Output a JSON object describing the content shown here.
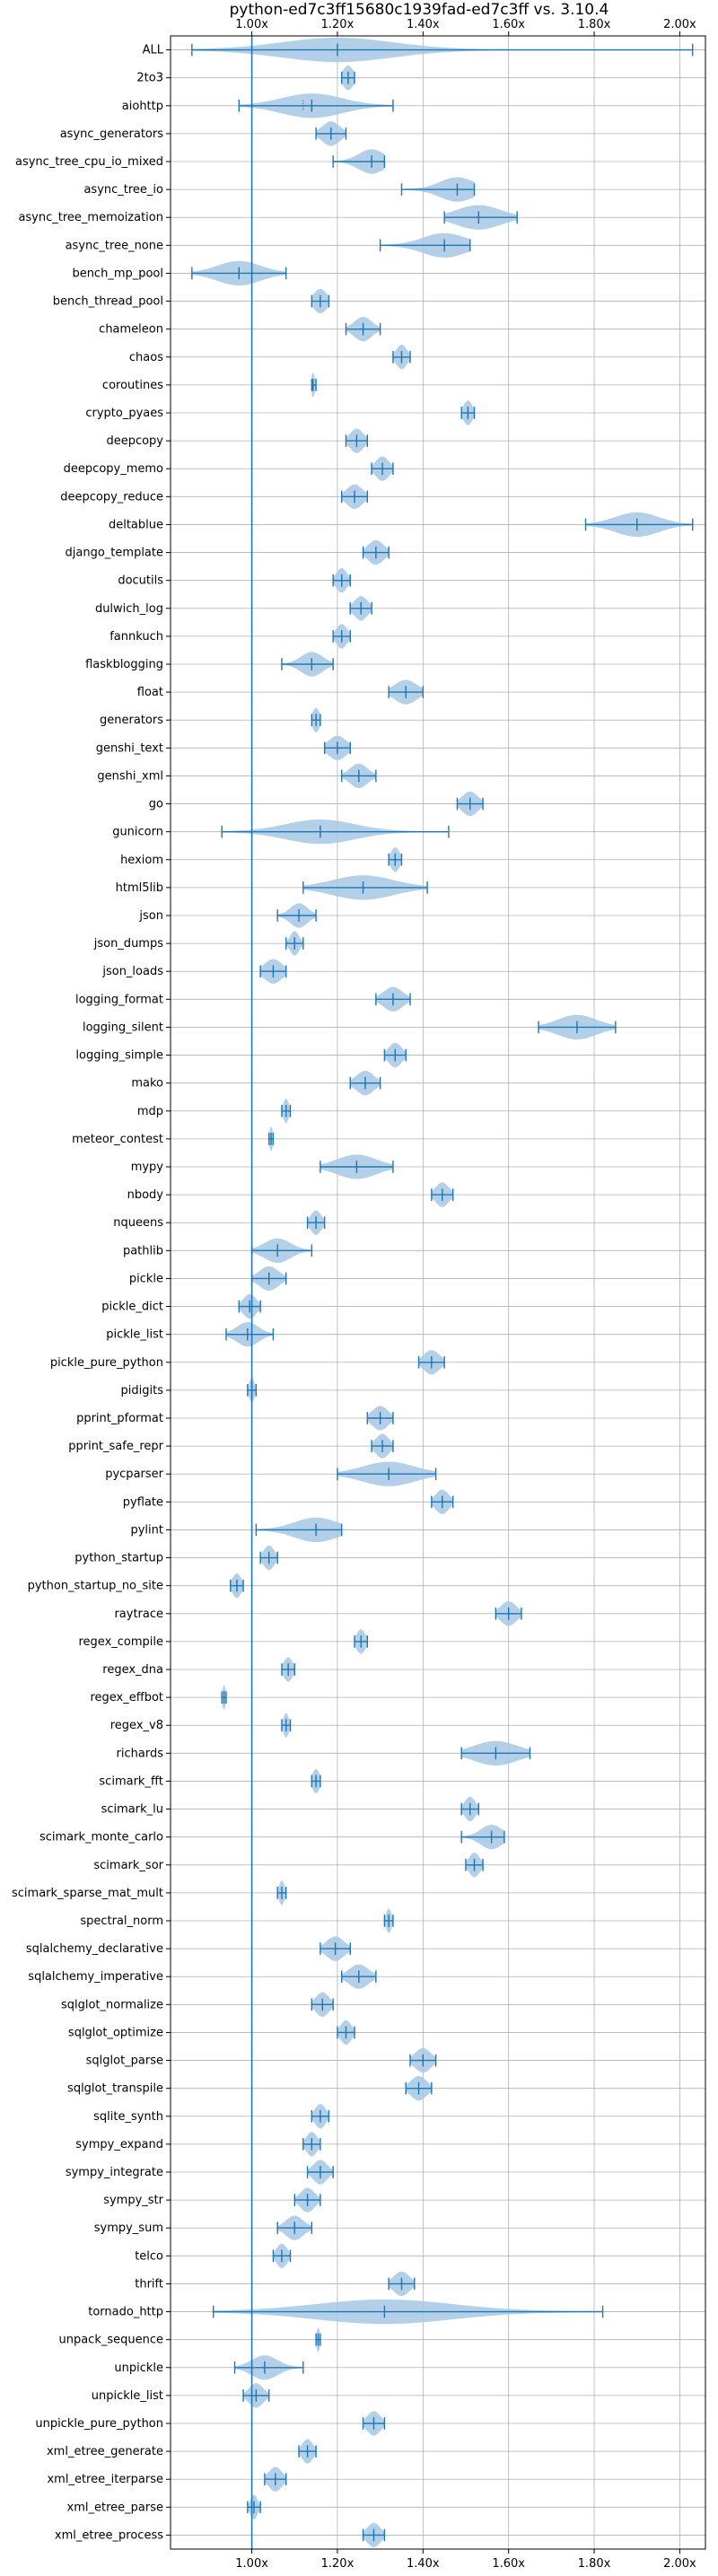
{
  "chart_data": {
    "type": "violin",
    "title": "python-ed7c3ff15680c1939fad-ed7c3ff vs. 3.10.4",
    "xlabel": "",
    "ylabel": "",
    "xlim": [
      0.81,
      2.06
    ],
    "x_ticks": [
      1.0,
      1.2,
      1.4,
      1.6,
      1.8,
      2.0
    ],
    "x_tick_labels": [
      "1.00x",
      "1.20x",
      "1.40x",
      "1.60x",
      "1.80x",
      "2.00x"
    ],
    "x_ticks_top": true,
    "x_ticks_bottom": true,
    "grid": true,
    "reference_line": 1.0,
    "colors": {
      "violin_fill": "#a6c8e4",
      "stroke": "#1f77b4",
      "grid": "#b0b0b0"
    },
    "benchmarks": [
      {
        "name": "ALL",
        "min": 0.86,
        "max": 2.03,
        "mean": 1.2,
        "median": 1.2,
        "spread": 0.13
      },
      {
        "name": "2to3",
        "min": 1.21,
        "max": 1.24,
        "mean": 1.225,
        "median": 1.225,
        "spread": 0.012
      },
      {
        "name": "aiohttp",
        "min": 0.97,
        "max": 1.33,
        "mean": 1.14,
        "median": 1.12,
        "spread": 0.07
      },
      {
        "name": "async_generators",
        "min": 1.15,
        "max": 1.22,
        "mean": 1.185,
        "median": 1.185,
        "spread": 0.02
      },
      {
        "name": "async_tree_cpu_io_mixed",
        "min": 1.19,
        "max": 1.31,
        "mean": 1.28,
        "median": 1.28,
        "spread": 0.03
      },
      {
        "name": "async_tree_io",
        "min": 1.35,
        "max": 1.52,
        "mean": 1.48,
        "median": 1.48,
        "spread": 0.04
      },
      {
        "name": "async_tree_memoization",
        "min": 1.45,
        "max": 1.62,
        "mean": 1.53,
        "median": 1.53,
        "spread": 0.05
      },
      {
        "name": "async_tree_none",
        "min": 1.3,
        "max": 1.51,
        "mean": 1.45,
        "median": 1.45,
        "spread": 0.05
      },
      {
        "name": "bench_mp_pool",
        "min": 0.86,
        "max": 1.08,
        "mean": 0.97,
        "median": 0.97,
        "spread": 0.05
      },
      {
        "name": "bench_thread_pool",
        "min": 1.14,
        "max": 1.18,
        "mean": 1.16,
        "median": 1.16,
        "spread": 0.015
      },
      {
        "name": "chameleon",
        "min": 1.22,
        "max": 1.3,
        "mean": 1.26,
        "median": 1.26,
        "spread": 0.02
      },
      {
        "name": "chaos",
        "min": 1.33,
        "max": 1.37,
        "mean": 1.35,
        "median": 1.35,
        "spread": 0.012
      },
      {
        "name": "coroutines",
        "min": 1.14,
        "max": 1.15,
        "mean": 1.143,
        "median": 1.143,
        "spread": 0.004
      },
      {
        "name": "crypto_pyaes",
        "min": 1.49,
        "max": 1.52,
        "mean": 1.505,
        "median": 1.505,
        "spread": 0.01
      },
      {
        "name": "deepcopy",
        "min": 1.22,
        "max": 1.27,
        "mean": 1.245,
        "median": 1.245,
        "spread": 0.015
      },
      {
        "name": "deepcopy_memo",
        "min": 1.28,
        "max": 1.33,
        "mean": 1.305,
        "median": 1.305,
        "spread": 0.015
      },
      {
        "name": "deepcopy_reduce",
        "min": 1.21,
        "max": 1.27,
        "mean": 1.24,
        "median": 1.24,
        "spread": 0.018
      },
      {
        "name": "deltablue",
        "min": 1.78,
        "max": 2.03,
        "mean": 1.9,
        "median": 1.9,
        "spread": 0.05
      },
      {
        "name": "django_template",
        "min": 1.26,
        "max": 1.32,
        "mean": 1.29,
        "median": 1.29,
        "spread": 0.018
      },
      {
        "name": "docutils",
        "min": 1.19,
        "max": 1.23,
        "mean": 1.21,
        "median": 1.21,
        "spread": 0.012
      },
      {
        "name": "dulwich_log",
        "min": 1.23,
        "max": 1.28,
        "mean": 1.255,
        "median": 1.255,
        "spread": 0.015
      },
      {
        "name": "fannkuch",
        "min": 1.19,
        "max": 1.23,
        "mean": 1.21,
        "median": 1.21,
        "spread": 0.012
      },
      {
        "name": "flaskblogging",
        "min": 1.07,
        "max": 1.19,
        "mean": 1.14,
        "median": 1.14,
        "spread": 0.025
      },
      {
        "name": "float",
        "min": 1.32,
        "max": 1.4,
        "mean": 1.36,
        "median": 1.36,
        "spread": 0.025
      },
      {
        "name": "generators",
        "min": 1.14,
        "max": 1.16,
        "mean": 1.15,
        "median": 1.15,
        "spread": 0.008
      },
      {
        "name": "genshi_text",
        "min": 1.17,
        "max": 1.23,
        "mean": 1.2,
        "median": 1.2,
        "spread": 0.02
      },
      {
        "name": "genshi_xml",
        "min": 1.21,
        "max": 1.29,
        "mean": 1.25,
        "median": 1.25,
        "spread": 0.02
      },
      {
        "name": "go",
        "min": 1.48,
        "max": 1.54,
        "mean": 1.51,
        "median": 1.51,
        "spread": 0.018
      },
      {
        "name": "gunicorn",
        "min": 0.93,
        "max": 1.46,
        "mean": 1.16,
        "median": 1.16,
        "spread": 0.08
      },
      {
        "name": "hexiom",
        "min": 1.32,
        "max": 1.35,
        "mean": 1.335,
        "median": 1.335,
        "spread": 0.01
      },
      {
        "name": "html5lib",
        "min": 1.12,
        "max": 1.41,
        "mean": 1.26,
        "median": 1.26,
        "spread": 0.07
      },
      {
        "name": "json",
        "min": 1.06,
        "max": 1.15,
        "mean": 1.11,
        "median": 1.11,
        "spread": 0.02
      },
      {
        "name": "json_dumps",
        "min": 1.08,
        "max": 1.12,
        "mean": 1.1,
        "median": 1.1,
        "spread": 0.01
      },
      {
        "name": "json_loads",
        "min": 1.02,
        "max": 1.08,
        "mean": 1.05,
        "median": 1.05,
        "spread": 0.02
      },
      {
        "name": "logging_format",
        "min": 1.29,
        "max": 1.37,
        "mean": 1.33,
        "median": 1.33,
        "spread": 0.022
      },
      {
        "name": "logging_silent",
        "min": 1.67,
        "max": 1.85,
        "mean": 1.76,
        "median": 1.76,
        "spread": 0.045
      },
      {
        "name": "logging_simple",
        "min": 1.31,
        "max": 1.36,
        "mean": 1.335,
        "median": 1.335,
        "spread": 0.015
      },
      {
        "name": "mako",
        "min": 1.23,
        "max": 1.3,
        "mean": 1.265,
        "median": 1.265,
        "spread": 0.02
      },
      {
        "name": "mdp",
        "min": 1.07,
        "max": 1.09,
        "mean": 1.08,
        "median": 1.08,
        "spread": 0.006
      },
      {
        "name": "meteor_contest",
        "min": 1.04,
        "max": 1.05,
        "mean": 1.045,
        "median": 1.045,
        "spread": 0.004
      },
      {
        "name": "mypy",
        "min": 1.16,
        "max": 1.33,
        "mean": 1.245,
        "median": 1.245,
        "spread": 0.045
      },
      {
        "name": "nbody",
        "min": 1.42,
        "max": 1.47,
        "mean": 1.445,
        "median": 1.445,
        "spread": 0.015
      },
      {
        "name": "nqueens",
        "min": 1.13,
        "max": 1.17,
        "mean": 1.15,
        "median": 1.15,
        "spread": 0.012
      },
      {
        "name": "pathlib",
        "min": 1.0,
        "max": 1.14,
        "mean": 1.06,
        "median": 1.06,
        "spread": 0.03
      },
      {
        "name": "pickle",
        "min": 1.0,
        "max": 1.08,
        "mean": 1.04,
        "median": 1.04,
        "spread": 0.022
      },
      {
        "name": "pickle_dict",
        "min": 0.97,
        "max": 1.02,
        "mean": 0.995,
        "median": 0.995,
        "spread": 0.015
      },
      {
        "name": "pickle_list",
        "min": 0.94,
        "max": 1.05,
        "mean": 0.99,
        "median": 0.99,
        "spread": 0.025
      },
      {
        "name": "pickle_pure_python",
        "min": 1.39,
        "max": 1.45,
        "mean": 1.42,
        "median": 1.42,
        "spread": 0.018
      },
      {
        "name": "pidigits",
        "min": 0.99,
        "max": 1.01,
        "mean": 1.0,
        "median": 1.0,
        "spread": 0.006
      },
      {
        "name": "pprint_pformat",
        "min": 1.27,
        "max": 1.33,
        "mean": 1.3,
        "median": 1.3,
        "spread": 0.018
      },
      {
        "name": "pprint_safe_repr",
        "min": 1.28,
        "max": 1.33,
        "mean": 1.305,
        "median": 1.305,
        "spread": 0.015
      },
      {
        "name": "pycparser",
        "min": 1.2,
        "max": 1.43,
        "mean": 1.32,
        "median": 1.32,
        "spread": 0.06
      },
      {
        "name": "pyflate",
        "min": 1.42,
        "max": 1.47,
        "mean": 1.445,
        "median": 1.445,
        "spread": 0.015
      },
      {
        "name": "pylint",
        "min": 1.01,
        "max": 1.21,
        "mean": 1.15,
        "median": 1.15,
        "spread": 0.05
      },
      {
        "name": "python_startup",
        "min": 1.02,
        "max": 1.06,
        "mean": 1.04,
        "median": 1.04,
        "spread": 0.012
      },
      {
        "name": "python_startup_no_site",
        "min": 0.95,
        "max": 0.98,
        "mean": 0.965,
        "median": 0.965,
        "spread": 0.01
      },
      {
        "name": "raytrace",
        "min": 1.57,
        "max": 1.63,
        "mean": 1.6,
        "median": 1.6,
        "spread": 0.018
      },
      {
        "name": "regex_compile",
        "min": 1.24,
        "max": 1.27,
        "mean": 1.255,
        "median": 1.255,
        "spread": 0.01
      },
      {
        "name": "regex_dna",
        "min": 1.07,
        "max": 1.1,
        "mean": 1.085,
        "median": 1.085,
        "spread": 0.01
      },
      {
        "name": "regex_effbot",
        "min": 0.93,
        "max": 0.94,
        "mean": 0.935,
        "median": 0.935,
        "spread": 0.004
      },
      {
        "name": "regex_v8",
        "min": 1.07,
        "max": 1.09,
        "mean": 1.08,
        "median": 1.08,
        "spread": 0.006
      },
      {
        "name": "richards",
        "min": 1.49,
        "max": 1.65,
        "mean": 1.57,
        "median": 1.57,
        "spread": 0.05
      },
      {
        "name": "scimark_fft",
        "min": 1.14,
        "max": 1.16,
        "mean": 1.15,
        "median": 1.15,
        "spread": 0.008
      },
      {
        "name": "scimark_lu",
        "min": 1.49,
        "max": 1.53,
        "mean": 1.51,
        "median": 1.51,
        "spread": 0.012
      },
      {
        "name": "scimark_monte_carlo",
        "min": 1.49,
        "max": 1.59,
        "mean": 1.56,
        "median": 1.56,
        "spread": 0.025
      },
      {
        "name": "scimark_sor",
        "min": 1.5,
        "max": 1.54,
        "mean": 1.52,
        "median": 1.52,
        "spread": 0.012
      },
      {
        "name": "scimark_sparse_mat_mult",
        "min": 1.06,
        "max": 1.08,
        "mean": 1.07,
        "median": 1.07,
        "spread": 0.006
      },
      {
        "name": "spectral_norm",
        "min": 1.31,
        "max": 1.33,
        "mean": 1.32,
        "median": 1.32,
        "spread": 0.006
      },
      {
        "name": "sqlalchemy_declarative",
        "min": 1.16,
        "max": 1.23,
        "mean": 1.195,
        "median": 1.195,
        "spread": 0.02
      },
      {
        "name": "sqlalchemy_imperative",
        "min": 1.21,
        "max": 1.29,
        "mean": 1.25,
        "median": 1.25,
        "spread": 0.022
      },
      {
        "name": "sqlglot_normalize",
        "min": 1.14,
        "max": 1.19,
        "mean": 1.165,
        "median": 1.165,
        "spread": 0.015
      },
      {
        "name": "sqlglot_optimize",
        "min": 1.2,
        "max": 1.24,
        "mean": 1.22,
        "median": 1.22,
        "spread": 0.012
      },
      {
        "name": "sqlglot_parse",
        "min": 1.37,
        "max": 1.43,
        "mean": 1.4,
        "median": 1.4,
        "spread": 0.018
      },
      {
        "name": "sqlglot_transpile",
        "min": 1.36,
        "max": 1.42,
        "mean": 1.39,
        "median": 1.39,
        "spread": 0.018
      },
      {
        "name": "sqlite_synth",
        "min": 1.14,
        "max": 1.18,
        "mean": 1.16,
        "median": 1.16,
        "spread": 0.012
      },
      {
        "name": "sympy_expand",
        "min": 1.12,
        "max": 1.16,
        "mean": 1.14,
        "median": 1.14,
        "spread": 0.012
      },
      {
        "name": "sympy_integrate",
        "min": 1.13,
        "max": 1.19,
        "mean": 1.16,
        "median": 1.16,
        "spread": 0.016
      },
      {
        "name": "sympy_str",
        "min": 1.1,
        "max": 1.16,
        "mean": 1.13,
        "median": 1.13,
        "spread": 0.016
      },
      {
        "name": "sympy_sum",
        "min": 1.06,
        "max": 1.14,
        "mean": 1.1,
        "median": 1.1,
        "spread": 0.02
      },
      {
        "name": "telco",
        "min": 1.05,
        "max": 1.09,
        "mean": 1.07,
        "median": 1.07,
        "spread": 0.012
      },
      {
        "name": "thrift",
        "min": 1.32,
        "max": 1.38,
        "mean": 1.35,
        "median": 1.35,
        "spread": 0.018
      },
      {
        "name": "tornado_http",
        "min": 0.91,
        "max": 1.82,
        "mean": 1.31,
        "median": 1.31,
        "spread": 0.16
      },
      {
        "name": "unpack_sequence",
        "min": 1.15,
        "max": 1.16,
        "mean": 1.155,
        "median": 1.155,
        "spread": 0.004
      },
      {
        "name": "unpickle",
        "min": 0.96,
        "max": 1.12,
        "mean": 1.03,
        "median": 1.03,
        "spread": 0.03
      },
      {
        "name": "unpickle_list",
        "min": 0.98,
        "max": 1.04,
        "mean": 1.01,
        "median": 1.01,
        "spread": 0.016
      },
      {
        "name": "unpickle_pure_python",
        "min": 1.26,
        "max": 1.31,
        "mean": 1.285,
        "median": 1.285,
        "spread": 0.015
      },
      {
        "name": "xml_etree_generate",
        "min": 1.11,
        "max": 1.15,
        "mean": 1.13,
        "median": 1.13,
        "spread": 0.012
      },
      {
        "name": "xml_etree_iterparse",
        "min": 1.03,
        "max": 1.08,
        "mean": 1.055,
        "median": 1.055,
        "spread": 0.015
      },
      {
        "name": "xml_etree_parse",
        "min": 0.99,
        "max": 1.02,
        "mean": 1.005,
        "median": 1.005,
        "spread": 0.008
      },
      {
        "name": "xml_etree_process",
        "min": 1.26,
        "max": 1.31,
        "mean": 1.285,
        "median": 1.285,
        "spread": 0.015
      }
    ]
  }
}
